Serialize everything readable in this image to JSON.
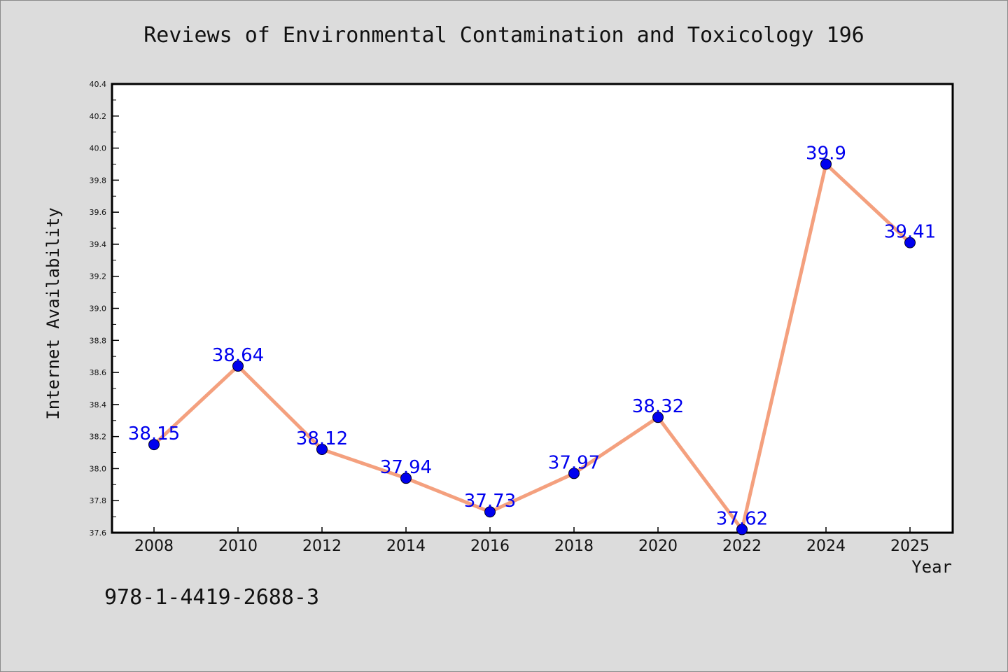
{
  "chart_data": {
    "type": "line",
    "title": "Reviews of Environmental Contamination and Toxicology 196",
    "xlabel": "Year",
    "ylabel": "Internet Availability",
    "x": [
      "2008",
      "2010",
      "2012",
      "2014",
      "2016",
      "2018",
      "2020",
      "2022",
      "2024",
      "2025"
    ],
    "series": [
      {
        "values": [
          38.15,
          38.64,
          38.12,
          37.94,
          37.73,
          37.97,
          38.32,
          37.62,
          39.9,
          39.41
        ],
        "data_labels": [
          "38.15",
          "38.64",
          "38.12",
          "37.94",
          "37.73",
          "37.97",
          "38.32",
          "37.62",
          "39.9",
          "39.41"
        ],
        "line_color": "#f4a07e",
        "marker_color": "#0000ee"
      }
    ],
    "ylim": [
      37.6,
      40.4
    ],
    "yticks": [
      "37.6",
      "37.8",
      "38.0",
      "38.2",
      "38.4",
      "38.6",
      "38.8",
      "39.0",
      "39.2",
      "39.4",
      "39.6",
      "39.8",
      "40.0",
      "40.2",
      "40.4"
    ],
    "grid": false,
    "label_color": "#0000ee"
  },
  "footer_text": "978-1-4419-2688-3"
}
